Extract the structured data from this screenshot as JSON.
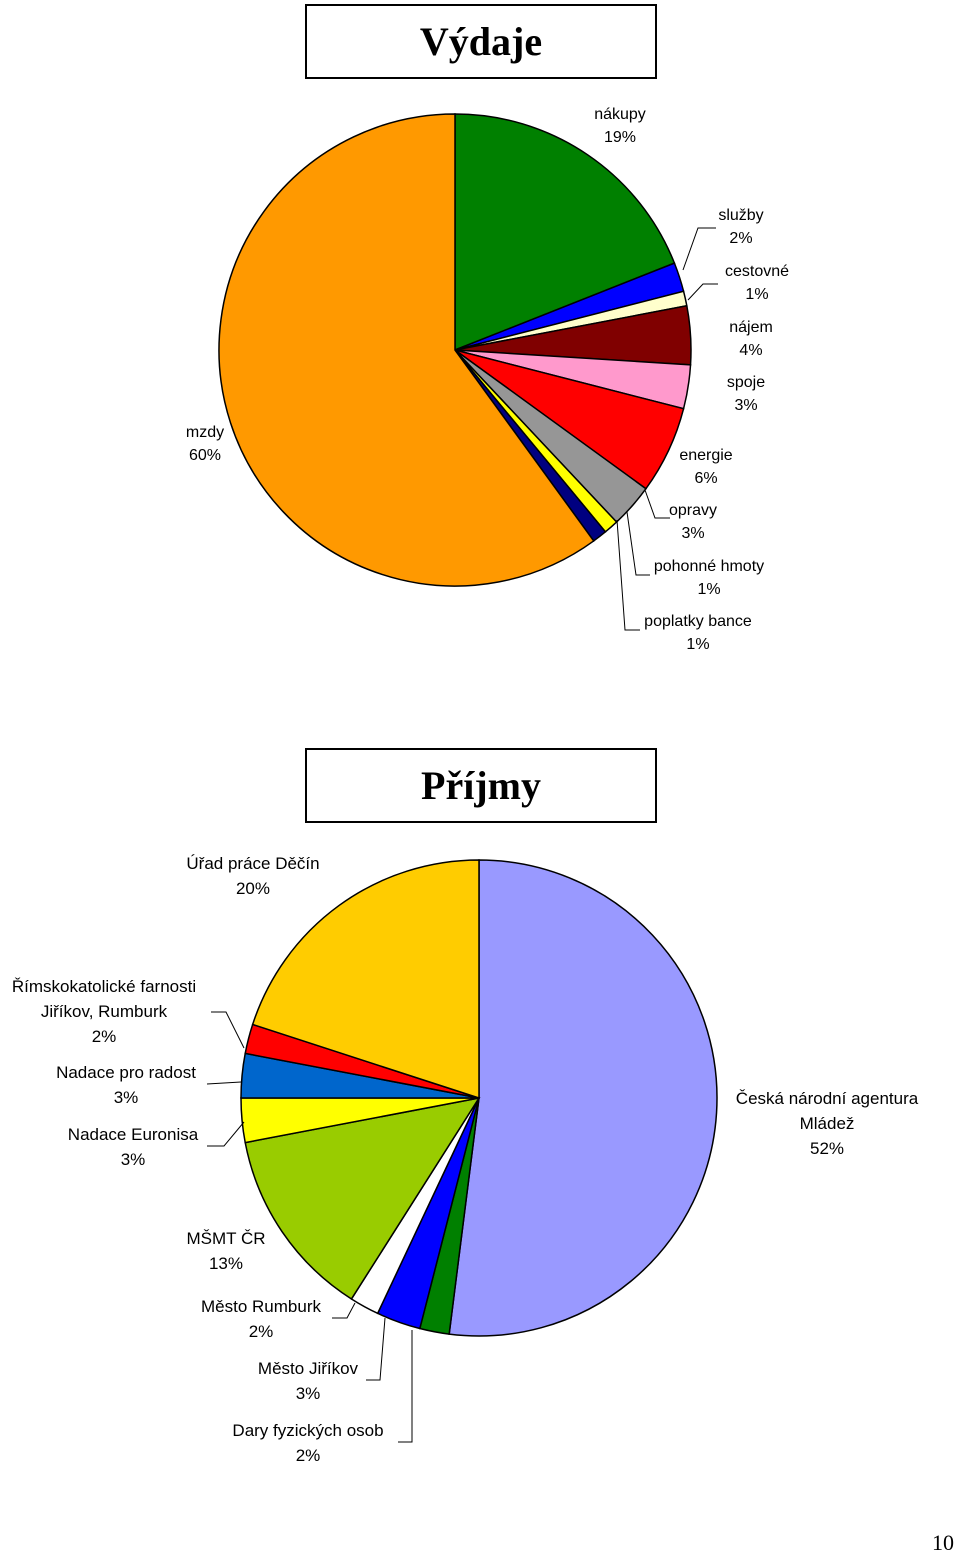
{
  "chart_data": [
    {
      "type": "pie",
      "title": "Výdaje",
      "categories": [
        "nákupy",
        "služby",
        "cestovné",
        "nájem",
        "spoje",
        "energie",
        "opravy",
        "pohonné hmoty",
        "poplatky bance",
        "mzdy"
      ],
      "values": [
        19,
        2,
        1,
        4,
        3,
        6,
        3,
        1,
        1,
        60
      ],
      "value_labels": [
        "19%",
        "2%",
        "1%",
        "4%",
        "3%",
        "6%",
        "3%",
        "1%",
        "1%",
        "60%"
      ],
      "colors": [
        "#008000",
        "#0000ff",
        "#ffffcc",
        "#800000",
        "#ff99cc",
        "#ff0000",
        "#969696",
        "#ffff00",
        "#000080",
        "#ff9900"
      ]
    },
    {
      "type": "pie",
      "title": "Příjmy",
      "categories": [
        "Česká národní agentura Mládež",
        "Dary fyzických osob",
        "Město Jiříkov",
        "Město Rumburk",
        "MŠMT ČR",
        "Nadace Euronisa",
        "Nadace pro radost",
        "Římskokatolické farnosti Jiříkov, Rumburk",
        "Úřad práce Děčín"
      ],
      "values": [
        52,
        2,
        3,
        2,
        13,
        3,
        3,
        2,
        20
      ],
      "value_labels": [
        "52%",
        "2%",
        "3%",
        "2%",
        "13%",
        "3%",
        "3%",
        "2%",
        "20%"
      ],
      "colors": [
        "#9999ff",
        "#008000",
        "#0000ff",
        "#ffffff",
        "#99cc00",
        "#ffff00",
        "#0066cc",
        "#ff0000",
        "#ffcc00"
      ]
    }
  ],
  "page_number": "10"
}
